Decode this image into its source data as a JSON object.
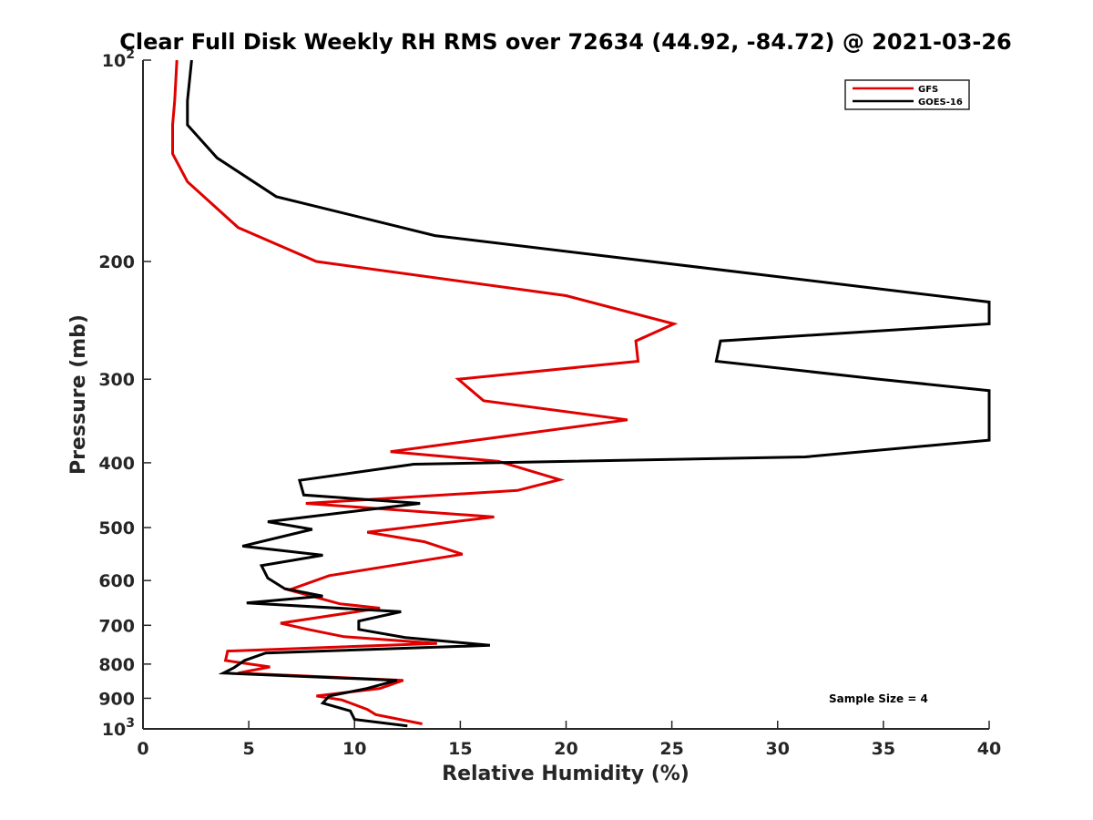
{
  "chart_data": {
    "type": "line",
    "title": "Clear Full Disk Weekly RH RMS over 72634 (44.92, -84.72) @ 2021-03-26",
    "xlabel": "Relative Humidity (%)",
    "ylabel": "Pressure (mb)",
    "xlim": [
      0,
      40
    ],
    "ylim": [
      100,
      1000
    ],
    "yscale": "log",
    "y_reversed": false,
    "x_ticks": [
      0,
      5,
      10,
      15,
      20,
      25,
      30,
      35,
      40
    ],
    "x_tick_labels": [
      "0",
      "5",
      "10",
      "15",
      "20",
      "25",
      "30",
      "35",
      "40"
    ],
    "y_ticks": [
      100,
      200,
      300,
      400,
      500,
      600,
      700,
      800,
      900,
      1000
    ],
    "y_tick_labels": [
      "10^2",
      "200",
      "300",
      "400",
      "500",
      "600",
      "700",
      "800",
      "900",
      "10^3"
    ],
    "legend_position": "top-right",
    "annotation": "Sample Size = 4",
    "series": [
      {
        "name": "GFS",
        "color": "#e00000",
        "points": [
          [
            1.6,
            100
          ],
          [
            1.5,
            115
          ],
          [
            1.4,
            125
          ],
          [
            1.4,
            138
          ],
          [
            2.1,
            152
          ],
          [
            4.5,
            178
          ],
          [
            8.2,
            200
          ],
          [
            20.0,
            225
          ],
          [
            25.1,
            248
          ],
          [
            23.3,
            263
          ],
          [
            23.4,
            282
          ],
          [
            14.9,
            300
          ],
          [
            16.1,
            323
          ],
          [
            22.9,
            345
          ],
          [
            11.7,
            385
          ],
          [
            16.8,
            398
          ],
          [
            19.7,
            424
          ],
          [
            17.7,
            440
          ],
          [
            7.7,
            460
          ],
          [
            16.6,
            482
          ],
          [
            10.6,
            508
          ],
          [
            13.3,
            525
          ],
          [
            15.1,
            548
          ],
          [
            8.8,
            590
          ],
          [
            6.9,
            620
          ],
          [
            9.3,
            650
          ],
          [
            11.2,
            660
          ],
          [
            6.5,
            695
          ],
          [
            7.8,
            710
          ],
          [
            9.5,
            728
          ],
          [
            13.9,
            745
          ],
          [
            4.0,
            765
          ],
          [
            3.9,
            790
          ],
          [
            6.0,
            808
          ],
          [
            4.5,
            825
          ],
          [
            12.3,
            846
          ],
          [
            11.2,
            870
          ],
          [
            8.2,
            893
          ],
          [
            9.4,
            905
          ],
          [
            10.6,
            935
          ],
          [
            11.0,
            952
          ],
          [
            13.2,
            983
          ]
        ]
      },
      {
        "name": "GOES-16",
        "color": "#000000",
        "points": [
          [
            2.3,
            100
          ],
          [
            2.1,
            115
          ],
          [
            2.1,
            125
          ],
          [
            3.5,
            140
          ],
          [
            6.3,
            160
          ],
          [
            13.8,
            183
          ],
          [
            40.0,
            230
          ],
          [
            40.0,
            248
          ],
          [
            27.3,
            263
          ],
          [
            27.1,
            282
          ],
          [
            34.8,
            300
          ],
          [
            40.0,
            312
          ],
          [
            40.0,
            370
          ],
          [
            31.3,
            392
          ],
          [
            12.8,
            402
          ],
          [
            7.4,
            425
          ],
          [
            7.6,
            447
          ],
          [
            13.1,
            460
          ],
          [
            5.9,
            490
          ],
          [
            8.0,
            503
          ],
          [
            4.7,
            533
          ],
          [
            8.5,
            550
          ],
          [
            5.6,
            570
          ],
          [
            5.9,
            595
          ],
          [
            6.7,
            617
          ],
          [
            8.5,
            633
          ],
          [
            4.9,
            648
          ],
          [
            12.2,
            668
          ],
          [
            10.2,
            690
          ],
          [
            10.2,
            710
          ],
          [
            12.4,
            730
          ],
          [
            16.4,
            750
          ],
          [
            5.8,
            770
          ],
          [
            4.8,
            790
          ],
          [
            4.3,
            810
          ],
          [
            3.8,
            825
          ],
          [
            12.0,
            846
          ],
          [
            10.6,
            870
          ],
          [
            8.8,
            893
          ],
          [
            8.5,
            915
          ],
          [
            9.8,
            940
          ],
          [
            10.0,
            968
          ],
          [
            12.5,
            990
          ]
        ]
      }
    ]
  }
}
